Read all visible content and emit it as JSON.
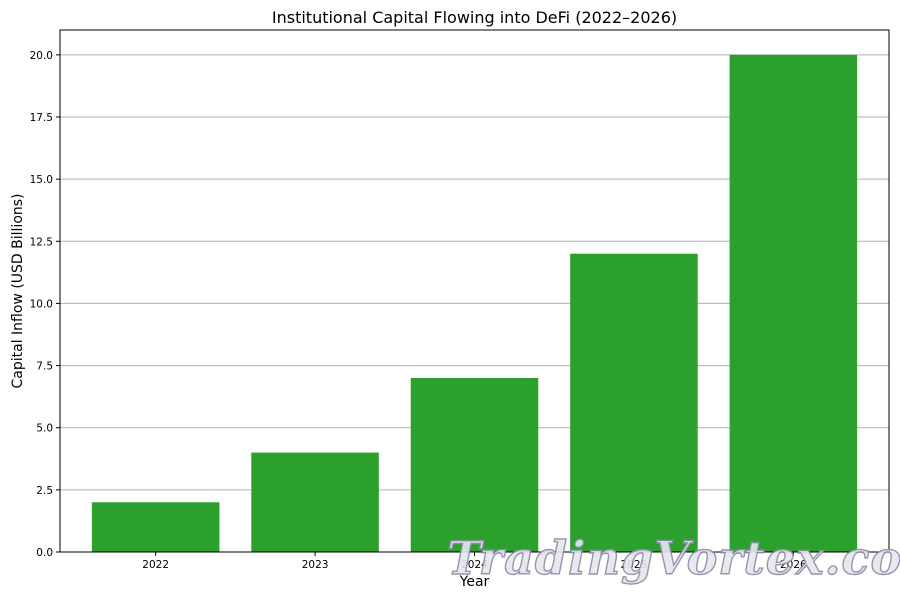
{
  "chart_data": {
    "type": "bar",
    "title": "Institutional Capital Flowing into DeFi (2022–2026)",
    "xlabel": "Year",
    "ylabel": "Capital Inflow (USD Billions)",
    "categories": [
      "2022",
      "2023",
      "2024",
      "2025",
      "2026"
    ],
    "values": [
      2,
      4,
      7,
      12,
      20
    ],
    "ylim": [
      0,
      21
    ],
    "yticks": [
      0.0,
      2.5,
      5.0,
      7.5,
      10.0,
      12.5,
      15.0,
      17.5,
      20.0
    ],
    "ytick_labels": [
      "0.0",
      "2.5",
      "5.0",
      "7.5",
      "10.0",
      "12.5",
      "15.0",
      "17.5",
      "20.0"
    ],
    "grid": "y-major",
    "bar_color": "#2ca02c",
    "grid_color": "#b0b0b0"
  },
  "watermark": {
    "text": "TradingVortex.com"
  }
}
